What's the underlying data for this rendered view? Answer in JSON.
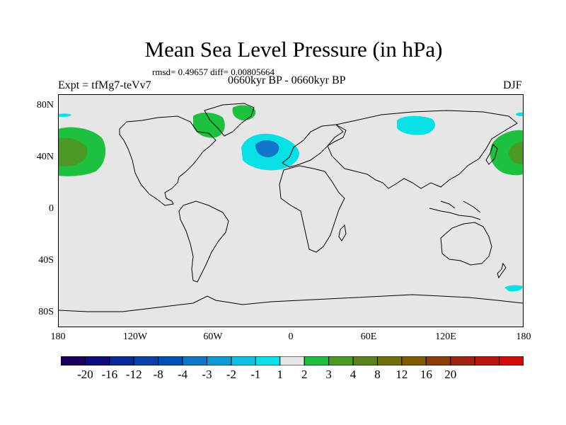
{
  "title": "Mean Sea Level Pressure (in hPa)",
  "stats": "rmsd= 0.49657 diff= 0.00805664",
  "subtitle": "0660kyr BP - 0660kyr BP",
  "left_label": "Expt = tfMg7-teVv7",
  "right_label": "DJF",
  "lat_labels": [
    "80N",
    "40N",
    "0",
    "40S",
    "80S"
  ],
  "lon_labels": [
    "180",
    "120W",
    "60W",
    "0",
    "60E",
    "120E",
    "180"
  ],
  "colorbar": {
    "colors": [
      "#1a0059",
      "#0d0d80",
      "#0b2a99",
      "#0a40a8",
      "#0050b8",
      "#1175c8",
      "#0f9ad6",
      "#0dbfe0",
      "#08e0e6",
      "#e6e6e6",
      "#1ec040",
      "#4a9a25",
      "#5a8020",
      "#707010",
      "#805a00",
      "#8a3e08",
      "#a02410",
      "#b81410",
      "#d20a0a"
    ],
    "labels": [
      "-20",
      "-16",
      "-12",
      "-8",
      "-4",
      "-3",
      "-2",
      "-1",
      "1",
      "2",
      "3",
      "4",
      "8",
      "12",
      "16",
      "20"
    ]
  },
  "map": {
    "ocean_color": "#e6e6e6",
    "coast_color": "#000000",
    "contour_colors": {
      "pos_1_2": "#1ec040",
      "pos_2_3": "#4a9a25",
      "neg_1_2": "#08e0e6",
      "neg_2_3": "#0dbfe0",
      "neg_3_4": "#1175c8"
    }
  }
}
